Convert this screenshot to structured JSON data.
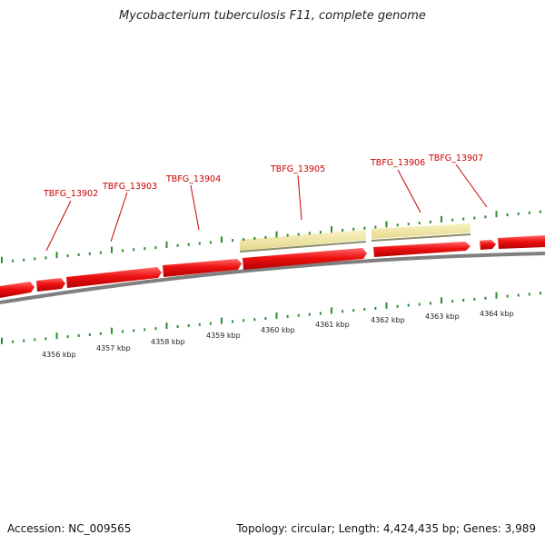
{
  "title": "Mycobacterium tuberculosis F11, complete genome",
  "footer": {
    "accession": "Accession: NC_009565",
    "summary": "Topology: circular; Length: 4,424,435 bp; Genes: 3,989"
  },
  "gene_labels": [
    "TBFG_13902",
    "TBFG_13903",
    "TBFG_13904",
    "TBFG_13905",
    "TBFG_13906",
    "TBFG_13907"
  ],
  "kbp_labels": [
    "4356 kbp",
    "4357 kbp",
    "4358 kbp",
    "4359 kbp",
    "4360 kbp",
    "4361 kbp",
    "4362 kbp",
    "4363 kbp",
    "4364 kbp"
  ],
  "colors": {
    "gene": "#ee1111",
    "highlight": "#f3eaa8",
    "backbone": "#808080",
    "tick": "#2e8b2e",
    "label": "#cc0000"
  }
}
